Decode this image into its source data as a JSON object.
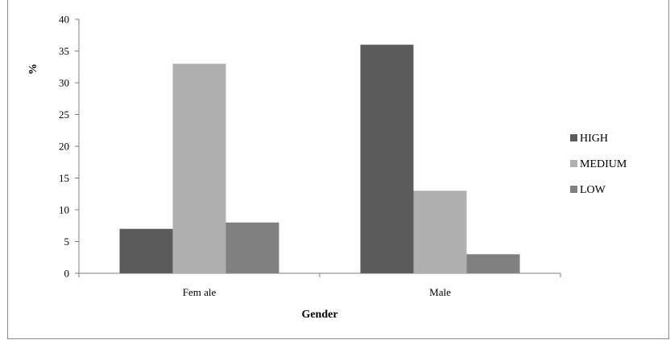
{
  "chart_data": {
    "type": "bar",
    "categories": [
      "Female",
      "Male"
    ],
    "series": [
      {
        "name": "HIGH",
        "values": [
          7,
          36
        ],
        "color": "#5b5b5b"
      },
      {
        "name": "MEDIUM",
        "values": [
          33,
          13
        ],
        "color": "#b0b0b0"
      },
      {
        "name": "LOW",
        "values": [
          8,
          3
        ],
        "color": "#808080"
      }
    ],
    "xlabel": "Gender",
    "ylabel": "%",
    "ylim": [
      0,
      40
    ],
    "yticks": [
      0,
      5,
      10,
      15,
      20,
      25,
      30,
      35,
      40
    ],
    "category_labels": [
      "Fem ale",
      "Male"
    ],
    "legend_position": "right",
    "grid": false
  }
}
